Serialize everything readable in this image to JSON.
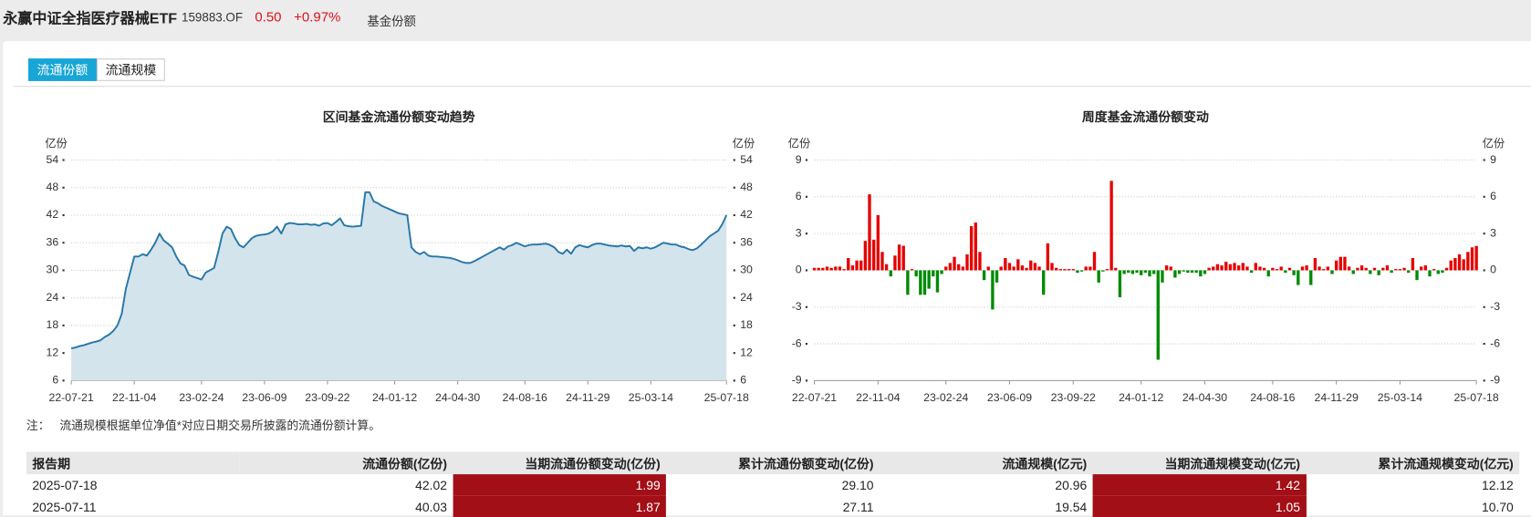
{
  "header": {
    "title": "永赢中证全指医疗器械ETF",
    "code": "159883.OF",
    "price": "0.50",
    "change": "+0.97%",
    "section": "基金份额"
  },
  "tabs": [
    "流通份额",
    "流通规模"
  ],
  "chart_data": [
    {
      "type": "area",
      "title": "区间基金流通份额变动趋势",
      "y_unit": "亿份",
      "y2_unit": "亿份",
      "color": "#2677a8",
      "fill_color": "#d4e4ec",
      "grid": true,
      "ylim": [
        6,
        54
      ],
      "yticks": [
        6,
        12,
        18,
        24,
        30,
        36,
        42,
        48,
        54
      ],
      "y2lim": [
        6,
        54
      ],
      "y2ticks": [
        6,
        12,
        18,
        24,
        30,
        36,
        42,
        48,
        54
      ],
      "categories": [
        "22-07-21",
        null,
        null,
        null,
        null,
        null,
        null,
        null,
        null,
        null,
        null,
        null,
        null,
        null,
        null,
        "22-11-04",
        null,
        null,
        null,
        null,
        null,
        null,
        null,
        null,
        null,
        null,
        null,
        null,
        null,
        null,
        null,
        "23-02-24",
        null,
        null,
        null,
        null,
        null,
        null,
        null,
        null,
        null,
        null,
        null,
        null,
        null,
        null,
        "23-06-09",
        null,
        null,
        null,
        null,
        null,
        null,
        null,
        null,
        null,
        null,
        null,
        null,
        null,
        null,
        "23-09-22",
        null,
        null,
        null,
        null,
        null,
        null,
        null,
        null,
        null,
        null,
        null,
        null,
        null,
        null,
        null,
        "24-01-12",
        null,
        null,
        null,
        null,
        null,
        null,
        null,
        null,
        null,
        null,
        null,
        null,
        null,
        null,
        "24-04-30",
        null,
        null,
        null,
        null,
        null,
        null,
        null,
        null,
        null,
        null,
        null,
        null,
        null,
        null,
        null,
        "24-08-16",
        null,
        null,
        null,
        null,
        null,
        null,
        null,
        null,
        null,
        null,
        null,
        null,
        null,
        null,
        "24-11-29",
        null,
        null,
        null,
        null,
        null,
        null,
        null,
        null,
        null,
        null,
        null,
        null,
        null,
        null,
        "25-03-14",
        null,
        null,
        null,
        null,
        null,
        null,
        null,
        null,
        null,
        null,
        null,
        null,
        null,
        null,
        null,
        null,
        null,
        "25-07-18"
      ],
      "values": [
        13.0,
        13.2,
        13.5,
        13.7,
        14.0,
        14.3,
        14.5,
        14.8,
        15.5,
        16.0,
        16.8,
        18.0,
        20.5,
        26.0,
        29.5,
        33.0,
        33.0,
        33.5,
        33.2,
        34.5,
        36.0,
        38.0,
        36.5,
        35.8,
        35.0,
        33.0,
        31.5,
        31.0,
        29.0,
        28.6,
        28.3,
        28.0,
        29.5,
        30.0,
        30.5,
        34.0,
        38.0,
        39.5,
        39.0,
        37.0,
        35.5,
        35.0,
        36.0,
        37.0,
        37.5,
        37.7,
        37.8,
        38.0,
        38.5,
        39.5,
        38.0,
        40.0,
        40.3,
        40.2,
        40.0,
        40.0,
        40.1,
        39.9,
        40.0,
        39.7,
        40.2,
        40.3,
        39.8,
        40.5,
        41.3,
        39.8,
        39.6,
        39.5,
        39.6,
        39.7,
        47.0,
        47.0,
        45.0,
        44.6,
        44.0,
        43.6,
        43.2,
        42.8,
        42.4,
        42.2,
        42.0,
        35.0,
        34.0,
        33.5,
        34.0,
        33.2,
        33.0,
        33.0,
        32.9,
        32.8,
        32.7,
        32.5,
        32.2,
        31.8,
        31.6,
        31.6,
        32.0,
        32.5,
        33.0,
        33.5,
        34.0,
        34.5,
        35.0,
        34.5,
        35.2,
        35.5,
        36.0,
        35.6,
        35.2,
        35.5,
        35.6,
        35.6,
        35.7,
        35.8,
        35.5,
        35.0,
        34.0,
        33.6,
        34.5,
        33.6,
        35.0,
        35.5,
        35.2,
        35.0,
        35.5,
        35.8,
        35.8,
        35.6,
        35.4,
        35.3,
        35.2,
        35.4,
        35.2,
        35.3,
        34.2,
        35.0,
        34.8,
        35.0,
        34.7,
        35.0,
        35.5,
        36.0,
        35.8,
        35.6,
        35.6,
        35.2,
        35.0,
        34.6,
        34.4,
        34.8,
        35.6,
        36.5,
        37.4,
        38.0,
        38.6,
        40.03,
        42.02
      ]
    },
    {
      "type": "bar",
      "title": "周度基金流通份额变动",
      "y_unit": "亿份",
      "y2_unit": "亿份",
      "color_positive": "#e60000",
      "color_negative": "#008a00",
      "grid": true,
      "ylim": [
        -9,
        9
      ],
      "yticks": [
        -9,
        -6,
        -3,
        0,
        3,
        6,
        9
      ],
      "y2lim": [
        -9,
        9
      ],
      "y2ticks": [
        -9,
        -6,
        -3,
        0,
        3,
        6,
        9
      ],
      "categories": [
        "22-07-21",
        null,
        null,
        null,
        null,
        null,
        null,
        null,
        null,
        null,
        null,
        null,
        null,
        null,
        null,
        "22-11-04",
        null,
        null,
        null,
        null,
        null,
        null,
        null,
        null,
        null,
        null,
        null,
        null,
        null,
        null,
        null,
        "23-02-24",
        null,
        null,
        null,
        null,
        null,
        null,
        null,
        null,
        null,
        null,
        null,
        null,
        null,
        null,
        "23-06-09",
        null,
        null,
        null,
        null,
        null,
        null,
        null,
        null,
        null,
        null,
        null,
        null,
        null,
        null,
        "23-09-22",
        null,
        null,
        null,
        null,
        null,
        null,
        null,
        null,
        null,
        null,
        null,
        null,
        null,
        null,
        null,
        "24-01-12",
        null,
        null,
        null,
        null,
        null,
        null,
        null,
        null,
        null,
        null,
        null,
        null,
        null,
        null,
        "24-04-30",
        null,
        null,
        null,
        null,
        null,
        null,
        null,
        null,
        null,
        null,
        null,
        null,
        null,
        null,
        null,
        "24-08-16",
        null,
        null,
        null,
        null,
        null,
        null,
        null,
        null,
        null,
        null,
        null,
        null,
        null,
        null,
        "24-11-29",
        null,
        null,
        null,
        null,
        null,
        null,
        null,
        null,
        null,
        null,
        null,
        null,
        null,
        null,
        "25-03-14",
        null,
        null,
        null,
        null,
        null,
        null,
        null,
        null,
        null,
        null,
        null,
        null,
        null,
        null,
        null,
        null,
        null,
        "25-07-18"
      ],
      "values": [
        0.2,
        0.2,
        0.2,
        0.3,
        0.2,
        0.3,
        0.3,
        0.1,
        1.0,
        0.4,
        0.8,
        0.8,
        2.4,
        6.2,
        2.5,
        4.5,
        1.5,
        0.5,
        -0.5,
        1.2,
        2.1,
        2.0,
        -2.0,
        0.1,
        -0.5,
        -2.0,
        -2.0,
        -1.5,
        -0.5,
        -1.8,
        -0.3,
        0.3,
        0.6,
        1.1,
        0.5,
        0.3,
        1.3,
        3.6,
        3.9,
        1.5,
        -0.8,
        0.3,
        -3.2,
        -1.0,
        0.3,
        1.0,
        0.6,
        0.3,
        0.9,
        0.4,
        0.2,
        0.8,
        0.6,
        0.3,
        -2.0,
        2.2,
        0.6,
        0.2,
        0.1,
        0.1,
        0.1,
        0.1,
        -0.2,
        -0.1,
        0.3,
        0.3,
        1.5,
        -1.0,
        -0.1,
        0.1,
        7.3,
        0.2,
        -2.2,
        -0.3,
        -0.2,
        -0.3,
        -0.2,
        -0.4,
        -0.2,
        -0.5,
        -0.3,
        -7.3,
        -1.0,
        0.4,
        0.3,
        -0.6,
        -0.3,
        -0.1,
        -0.2,
        -0.2,
        -0.2,
        -0.5,
        -0.3,
        0.2,
        0.3,
        0.5,
        0.4,
        0.7,
        0.5,
        0.6,
        0.4,
        0.6,
        0.3,
        -0.2,
        0.6,
        0.3,
        0.2,
        -0.5,
        0.2,
        0.1,
        0.3,
        -0.2,
        0.2,
        -0.4,
        -1.2,
        0.3,
        0.4,
        -1.2,
        1.0,
        0.3,
        0.1,
        0.3,
        -0.3,
        0.8,
        1.1,
        1.1,
        0.3,
        -0.3,
        0.2,
        0.4,
        0.2,
        -0.3,
        0.2,
        -0.4,
        0.2,
        0.4,
        -0.2,
        0.1,
        0.1,
        0.2,
        -0.2,
        1.0,
        -0.8,
        0.3,
        0.4,
        -0.5,
        0.1,
        -0.3,
        -0.2,
        0.2,
        0.8,
        1.0,
        1.3,
        0.9,
        1.5,
        1.87,
        1.99
      ]
    }
  ],
  "note": {
    "label": "注：",
    "text": "流通规模根据单位净值*对应日期交易所披露的流通份额计算。"
  },
  "table": {
    "columns": [
      "报告期",
      "流通份额(亿份)",
      "当期流通份额变动(亿份)",
      "累计流通份额变动(亿份)",
      "流通规模(亿元)",
      "当期流通规模变动(亿元)",
      "累计流通规模变动(亿元)"
    ],
    "rows": [
      [
        "2025-07-18",
        "42.02",
        "1.99",
        "29.10",
        "20.96",
        "1.42",
        "12.12"
      ],
      [
        "2025-07-11",
        "40.03",
        "1.87",
        "27.11",
        "19.54",
        "1.05",
        "10.70"
      ]
    ]
  }
}
